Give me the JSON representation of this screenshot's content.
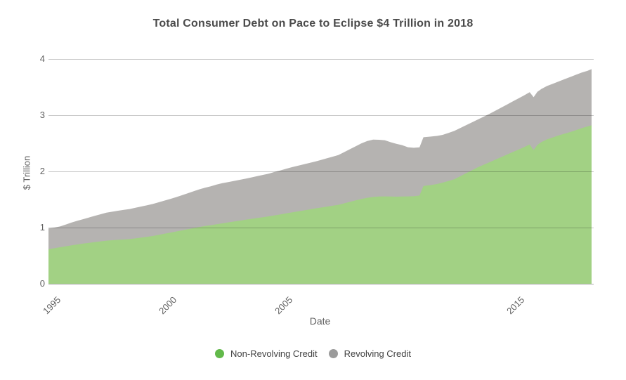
{
  "title": "Total Consumer Debt on Pace to Eclipse $4 Trillion in 2018",
  "y_axis": {
    "title": "$ Trillion"
  },
  "x_axis": {
    "title": "Date"
  },
  "colors": {
    "background": "#ffffff",
    "title_text": "#4b4b4b",
    "axis_text": "#616161",
    "legend_text": "#424242",
    "gridline": "rgba(0,0,0,0.22)",
    "baseline": "rgba(0,0,0,0.32)",
    "nonrevolving_area": "#a2d184",
    "revolving_area": "#b5b3b1",
    "nonrevolving_legend": "#62b94a",
    "revolving_legend": "#9b9b9b"
  },
  "chart_data": {
    "type": "area",
    "stacked": true,
    "title": "Total Consumer Debt on Pace to Eclipse $4 Trillion in 2018",
    "xlabel": "Date",
    "ylabel": "$ Trillion",
    "xlim": [
      1994.5,
      2017.92
    ],
    "ylim": [
      0,
      4
    ],
    "grid": "horizontal",
    "legend_position": "bottom",
    "y_ticks": [
      {
        "value": 0,
        "label": "0"
      },
      {
        "value": 1,
        "label": "1"
      },
      {
        "value": 2,
        "label": "2"
      },
      {
        "value": 3,
        "label": "3"
      },
      {
        "value": 4,
        "label": "4"
      }
    ],
    "x_ticks": [
      {
        "value": 1995,
        "label": "1995"
      },
      {
        "value": 2000,
        "label": "2000"
      },
      {
        "value": 2005,
        "label": "2005"
      },
      {
        "value": 2015,
        "label": "2015"
      }
    ],
    "x": [
      1994.5,
      1994.75,
      1995.0,
      1995.25,
      1995.5,
      1995.75,
      1996.0,
      1996.25,
      1996.5,
      1996.75,
      1997.0,
      1997.25,
      1997.5,
      1997.75,
      1998.0,
      1998.25,
      1998.5,
      1998.75,
      1999.0,
      1999.25,
      1999.5,
      1999.75,
      2000.0,
      2000.25,
      2000.5,
      2000.75,
      2001.0,
      2001.25,
      2001.5,
      2001.75,
      2002.0,
      2002.25,
      2002.5,
      2002.75,
      2003.0,
      2003.25,
      2003.5,
      2003.75,
      2004.0,
      2004.25,
      2004.5,
      2004.75,
      2005.0,
      2005.25,
      2005.5,
      2005.75,
      2006.0,
      2006.25,
      2006.5,
      2006.75,
      2007.0,
      2007.25,
      2007.5,
      2007.75,
      2008.0,
      2008.25,
      2008.5,
      2008.75,
      2009.0,
      2009.25,
      2009.5,
      2009.75,
      2010.0,
      2010.25,
      2010.5,
      2010.67,
      2010.92,
      2011.0,
      2011.25,
      2011.5,
      2011.75,
      2012.0,
      2012.25,
      2012.5,
      2012.75,
      2013.0,
      2013.25,
      2013.5,
      2013.75,
      2014.0,
      2014.25,
      2014.5,
      2014.75,
      2015.0,
      2015.25,
      2015.42,
      2015.58,
      2015.75,
      2016.0,
      2016.25,
      2016.5,
      2016.75,
      2017.0,
      2017.25,
      2017.5,
      2017.75,
      2017.92
    ],
    "series": [
      {
        "name": "Non-Revolving Credit",
        "color": "#62b94a",
        "area_color": "#a2d184",
        "values": [
          0.615,
          0.632,
          0.65,
          0.668,
          0.685,
          0.7,
          0.715,
          0.728,
          0.742,
          0.755,
          0.768,
          0.775,
          0.782,
          0.788,
          0.795,
          0.808,
          0.822,
          0.836,
          0.85,
          0.87,
          0.89,
          0.91,
          0.93,
          0.95,
          0.97,
          0.99,
          1.01,
          1.027,
          1.043,
          1.06,
          1.075,
          1.092,
          1.108,
          1.124,
          1.14,
          1.155,
          1.17,
          1.185,
          1.2,
          1.218,
          1.235,
          1.253,
          1.27,
          1.288,
          1.305,
          1.323,
          1.34,
          1.356,
          1.372,
          1.389,
          1.405,
          1.431,
          1.458,
          1.484,
          1.51,
          1.53,
          1.545,
          1.552,
          1.555,
          1.552,
          1.55,
          1.552,
          1.555,
          1.558,
          1.57,
          1.74,
          1.752,
          1.758,
          1.775,
          1.8,
          1.83,
          1.86,
          1.912,
          1.965,
          2.017,
          2.07,
          2.115,
          2.16,
          2.205,
          2.25,
          2.295,
          2.34,
          2.385,
          2.43,
          2.48,
          2.38,
          2.47,
          2.52,
          2.57,
          2.605,
          2.64,
          2.67,
          2.7,
          2.735,
          2.77,
          2.8,
          2.82
        ]
      },
      {
        "name": "Revolving Credit",
        "color": "#9b9b9b",
        "area_color": "#b5b3b1",
        "values": [
          0.37,
          0.368,
          0.37,
          0.387,
          0.405,
          0.422,
          0.435,
          0.452,
          0.468,
          0.483,
          0.497,
          0.508,
          0.518,
          0.527,
          0.535,
          0.544,
          0.553,
          0.562,
          0.57,
          0.58,
          0.59,
          0.6,
          0.61,
          0.625,
          0.64,
          0.655,
          0.67,
          0.683,
          0.692,
          0.705,
          0.715,
          0.718,
          0.722,
          0.726,
          0.73,
          0.737,
          0.745,
          0.753,
          0.76,
          0.772,
          0.783,
          0.794,
          0.805,
          0.812,
          0.82,
          0.827,
          0.835,
          0.848,
          0.86,
          0.872,
          0.885,
          0.911,
          0.937,
          0.964,
          0.99,
          1.01,
          1.02,
          1.01,
          1.0,
          0.968,
          0.94,
          0.916,
          0.875,
          0.862,
          0.858,
          0.868,
          0.866,
          0.862,
          0.856,
          0.85,
          0.855,
          0.86,
          0.858,
          0.855,
          0.853,
          0.85,
          0.855,
          0.86,
          0.87,
          0.88,
          0.89,
          0.9,
          0.91,
          0.92,
          0.93,
          0.94,
          0.945,
          0.945,
          0.95,
          0.955,
          0.96,
          0.97,
          0.98,
          0.985,
          0.99,
          0.99,
          1.0
        ]
      }
    ]
  }
}
